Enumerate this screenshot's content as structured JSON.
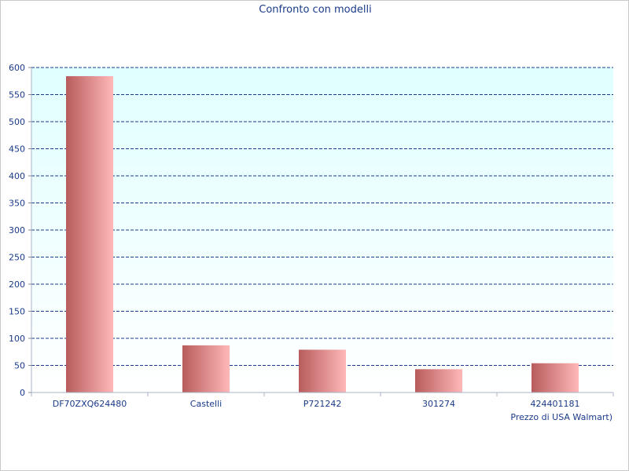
{
  "chart_data": {
    "type": "bar",
    "title": "Confronto con modelli",
    "categories": [
      "DF70ZXQ624480",
      "Castelli",
      "P721242",
      "301274",
      "424401181"
    ],
    "series": [
      {
        "values": [
          584,
          87,
          79,
          43,
          54
        ]
      }
    ],
    "xlabel": "Prezzo di USA Walmart)",
    "ylabel": "",
    "ylim": [
      0,
      600
    ],
    "yticks": [
      0,
      50,
      100,
      150,
      200,
      250,
      300,
      350,
      400,
      450,
      500,
      550,
      600
    ],
    "grid": true,
    "legend": "none",
    "colors": {
      "plot_bg_top": "#e0ffff",
      "plot_bg_bottom": "#ffffff",
      "bar_dark": "#b85c5c",
      "bar_light": "#ffb8b8",
      "grid": "#1a3a8a",
      "text": "#1a3a8a"
    }
  }
}
